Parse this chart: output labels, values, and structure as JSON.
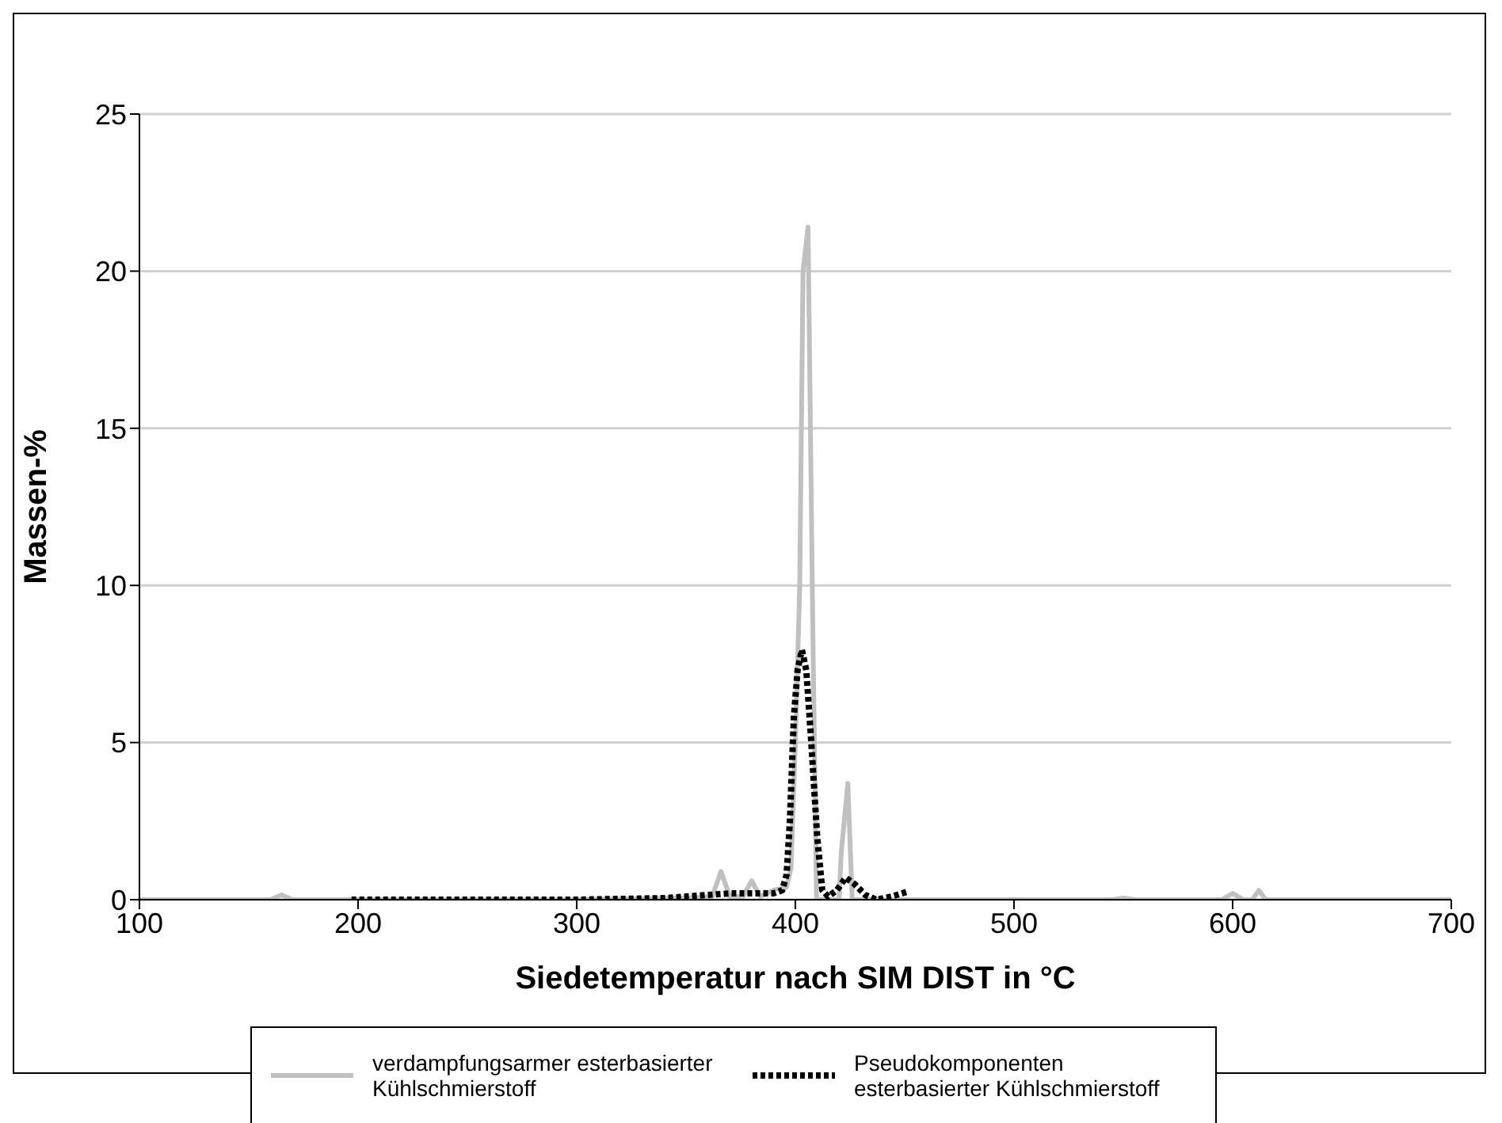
{
  "chart_data": {
    "type": "line",
    "xlabel": "Siedetemperatur nach SIM DIST in °C",
    "ylabel": "Massen-%",
    "xlim": [
      100,
      700
    ],
    "xticks": [
      100,
      200,
      300,
      400,
      500,
      600,
      700
    ],
    "ylim": [
      0,
      25
    ],
    "yticks": [
      0,
      5,
      10,
      15,
      20,
      25
    ],
    "grid": "y",
    "legend": "bottom",
    "marker": "none",
    "series": [
      {
        "name": "verdampfungsarmer esterbasierter Kühlschmierstoff",
        "color": "#c0c0c0",
        "line_style": "solid",
        "x": [
          100,
          160,
          165,
          170,
          300,
          350,
          362,
          366,
          370,
          376,
          380,
          384,
          390,
          396,
          398,
          400,
          402,
          403.5,
          405.8,
          408,
          409.7,
          420,
          421,
          424,
          426,
          430,
          545,
          550,
          555,
          595,
          600,
          605,
          609,
          612,
          615,
          700
        ],
        "values": [
          0,
          0,
          0.15,
          0,
          0,
          0.05,
          0.1,
          0.9,
          0.1,
          0.1,
          0.6,
          0.1,
          0.3,
          0.4,
          1,
          5,
          10,
          20,
          21.4,
          8.5,
          0,
          0,
          1.5,
          3.7,
          0,
          0,
          0,
          0.05,
          0,
          0,
          0.2,
          0,
          0,
          0.3,
          0,
          0
        ]
      },
      {
        "name": "Pseudokomponenten esterbasierter Kühlschmierstoff",
        "color": "#000000",
        "line_style": "dotted",
        "x": [
          197,
          250,
          300,
          340,
          350,
          370,
          390,
          394,
          396,
          397.5,
          399.3,
          401,
          403,
          405,
          407,
          410,
          412.3,
          415,
          419,
          423,
          427,
          432,
          437,
          444,
          451
        ],
        "values": [
          0,
          0,
          0,
          0.05,
          0.1,
          0.2,
          0.2,
          0.3,
          0.8,
          2.5,
          5.8,
          7.3,
          7.95,
          7.3,
          5.3,
          2,
          0.3,
          0.1,
          0.3,
          0.7,
          0.5,
          0.15,
          0,
          0.1,
          0.25
        ]
      }
    ]
  }
}
